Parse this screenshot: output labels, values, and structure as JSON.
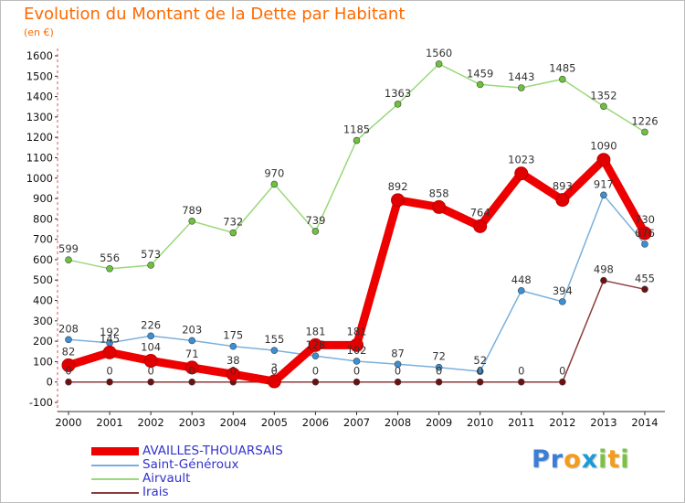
{
  "title": "Evolution du Montant de la Dette par Habitant",
  "unit": "(en €)",
  "brand": {
    "text": "Proxiti",
    "letters": [
      "P",
      "r",
      "o",
      "x",
      "i",
      "t",
      "i"
    ],
    "colors": [
      "#3a7fd5",
      "#3a7fd5",
      "#f39c1b",
      "#1b9bd6",
      "#7cc242",
      "#f39c1b",
      "#7cc242"
    ]
  },
  "chart_data": {
    "type": "line",
    "title": "Evolution du Montant de la Dette par Habitant",
    "ylabel": "(en €)",
    "xlabel": "",
    "categories": [
      "2000",
      "2001",
      "2002",
      "2003",
      "2004",
      "2005",
      "2006",
      "2007",
      "2008",
      "2009",
      "2010",
      "2011",
      "2012",
      "2013",
      "2014"
    ],
    "ylim": [
      -100,
      1600
    ],
    "yticks": [
      -100,
      0,
      100,
      200,
      300,
      400,
      500,
      600,
      700,
      800,
      900,
      1000,
      1100,
      1200,
      1300,
      1400,
      1500,
      1600
    ],
    "grid": false,
    "legend_position": "bottom-left",
    "series": [
      {
        "name": "AVAILLES-THOUARSAIS",
        "color": "#ee0000",
        "line_color": "#ee0000",
        "marker_color": "#e00000",
        "emphasis": true,
        "values": [
          82,
          145,
          104,
          71,
          38,
          3,
          181,
          181,
          892,
          858,
          764,
          1023,
          893,
          1090,
          730
        ],
        "labels": [
          "82",
          "145",
          "104",
          "71",
          "38",
          "3",
          "181",
          "181",
          "892",
          "858",
          "764",
          "1023",
          "893",
          "1090",
          "730"
        ]
      },
      {
        "name": "Saint-Généroux",
        "color": "#3b8fd4",
        "line_color": "#7ab0dc",
        "marker_color": "#3b8fd4",
        "emphasis": false,
        "values": [
          208,
          192,
          226,
          203,
          175,
          155,
          128,
          102,
          87,
          72,
          52,
          448,
          394,
          917,
          676
        ],
        "labels": [
          "208",
          "192",
          "226",
          "203",
          "175",
          "155",
          "128",
          "102",
          "87",
          "72",
          "52",
          "448",
          "394",
          "917",
          "676"
        ]
      },
      {
        "name": "Airvault",
        "color": "#6cc23a",
        "line_color": "#9ad87a",
        "marker_color": "#6cc23a",
        "emphasis": false,
        "values": [
          599,
          556,
          573,
          789,
          732,
          970,
          739,
          1185,
          1363,
          1560,
          1459,
          1443,
          1485,
          1352,
          1226
        ],
        "labels": [
          "599",
          "556",
          "573",
          "789",
          "732",
          "970",
          "739",
          "1185",
          "1363",
          "1560",
          "1459",
          "1443",
          "1485",
          "1352",
          "1226"
        ]
      },
      {
        "name": "Irais",
        "color": "#7a1515",
        "line_color": "#8a3a3a",
        "marker_color": "#6e1010",
        "emphasis": false,
        "values": [
          0,
          0,
          0,
          0,
          0,
          0,
          0,
          0,
          0,
          0,
          0,
          0,
          0,
          498,
          455
        ],
        "labels": [
          "0",
          "0",
          "0",
          "0",
          "0",
          "0",
          "0",
          "0",
          "0",
          "0",
          "0",
          "0",
          "0",
          "498",
          "455"
        ]
      }
    ]
  }
}
